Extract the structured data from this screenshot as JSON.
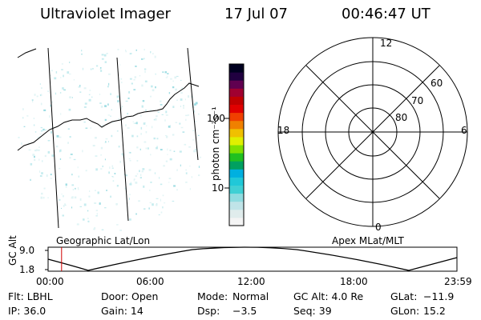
{
  "header": {
    "instrument": "Ultraviolet Imager",
    "date": "17 Jul 07",
    "time": "00:46:47 UT"
  },
  "colorbar": {
    "unit_label": "photon cm⁻²s⁻¹",
    "ticks": [
      "100",
      "10"
    ],
    "colors": [
      "#f4f4f4",
      "#e0ecec",
      "#c0e4e8",
      "#90dce0",
      "#40d0d4",
      "#20c8d8",
      "#00b0e0",
      "#00a060",
      "#20c020",
      "#80e000",
      "#e0f000",
      "#f0c000",
      "#f08000",
      "#f04000",
      "#e00000",
      "#c00000",
      "#a00030",
      "#600050",
      "#200040",
      "#000020"
    ]
  },
  "map_panel": {
    "label": "Geographic Lat/Lon"
  },
  "polar_panel": {
    "label": "Apex MLat/MLT",
    "mlt_labels": {
      "top": "12",
      "left": "18",
      "right": "6",
      "bottom": "0"
    },
    "lat_labels": [
      "60",
      "70",
      "80"
    ]
  },
  "altitude_plot": {
    "axis_title": "GC Alt",
    "y_ticks": [
      "9.0",
      "1.8"
    ],
    "x_ticks": [
      "00:00",
      "06:00",
      "12:00",
      "18:00",
      "23:59"
    ],
    "current_time_fraction": 0.033
  },
  "status": {
    "filter": "Flt: LBHL",
    "door": "Door: Open",
    "mode_label": "Mode:",
    "mode_value": "Normal",
    "gc_alt": "GC Alt: 4.0 Re",
    "glat_label": "GLat:",
    "glat_value": "−11.9",
    "ip": "IP: 36.0",
    "gain": "Gain: 14",
    "dsp_label": "Dsp:",
    "dsp_value": "−3.5",
    "seq": "Seq: 39",
    "glon_label": "GLon:",
    "glon_value": "15.2"
  }
}
